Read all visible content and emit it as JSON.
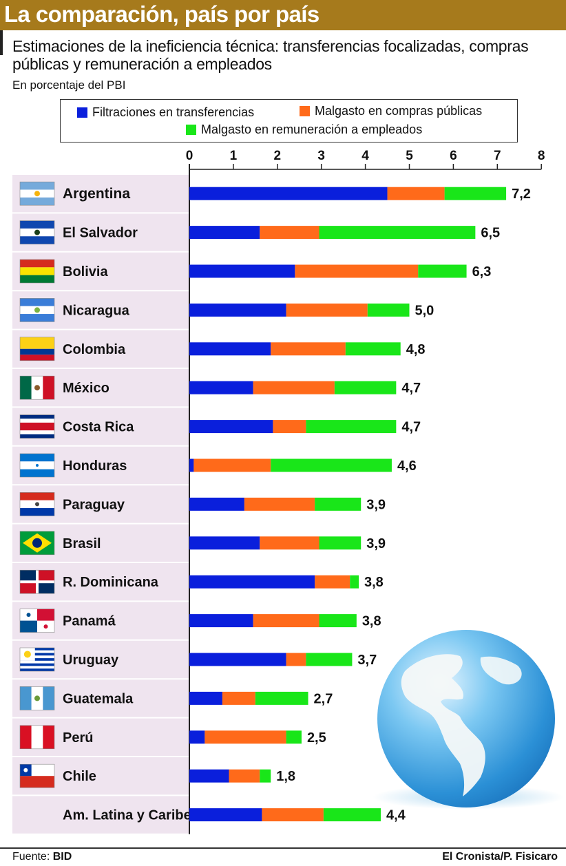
{
  "header": {
    "title": "La comparación, país por país",
    "subtitle": "Estimaciones de la ineficiencia técnica: transferencias focalizadas, compras públicas y remuneración a empleados",
    "unit": "En porcentaje del PBI"
  },
  "footer": {
    "source_label": "Fuente:",
    "source": "BID",
    "credit": "El Cronista/P. Fisicaro"
  },
  "colors": {
    "transferencias": "#0a1fdc",
    "compras": "#ff6a1a",
    "remuneracion": "#19e619",
    "row_band": "#efe4ef",
    "axis": "#222222"
  },
  "chart_data": {
    "type": "bar",
    "orientation": "horizontal",
    "stacked": true,
    "title": "La comparación, país por país",
    "subtitle": "Estimaciones de la ineficiencia técnica: transferencias focalizadas, compras públicas y remuneración a empleados",
    "xlabel": "",
    "ylabel": "",
    "unit": "En porcentaje del PBI",
    "xlim": [
      0,
      8
    ],
    "xticks": [
      "0",
      "1",
      "2",
      "3",
      "4",
      "5",
      "6",
      "7",
      "8"
    ],
    "legend_position": "top",
    "grid": false,
    "categories": [
      "Argentina",
      "El Salvador",
      "Bolivia",
      "Nicaragua",
      "Colombia",
      "México",
      "Costa Rica",
      "Honduras",
      "Paraguay",
      "Brasil",
      "R. Dominicana",
      "Panamá",
      "Uruguay",
      "Guatemala",
      "Perú",
      "Chile",
      "Am. Latina y Caribe"
    ],
    "flags": [
      "argentina",
      "el-salvador",
      "bolivia",
      "nicaragua",
      "colombia",
      "mexico",
      "costa-rica",
      "honduras",
      "paraguay",
      "brasil",
      "r-dominicana",
      "panama",
      "uruguay",
      "guatemala",
      "peru",
      "chile",
      ""
    ],
    "series": [
      {
        "name": "Filtraciones en transferencias",
        "values": [
          4.5,
          1.6,
          2.4,
          2.2,
          1.85,
          1.45,
          1.9,
          0.1,
          1.25,
          1.6,
          2.85,
          1.45,
          2.2,
          0.75,
          0.35,
          0.9,
          1.65
        ]
      },
      {
        "name": "Malgasto en compras públicas",
        "values": [
          1.3,
          1.35,
          2.8,
          1.85,
          1.7,
          1.85,
          0.75,
          1.75,
          1.6,
          1.35,
          0.8,
          1.5,
          0.45,
          0.75,
          1.85,
          0.7,
          1.4
        ]
      },
      {
        "name": "Malgasto en remuneración a empleados",
        "values": [
          1.4,
          3.55,
          1.1,
          0.95,
          1.25,
          1.4,
          2.05,
          2.75,
          1.05,
          0.95,
          0.2,
          0.85,
          1.05,
          1.2,
          0.35,
          0.25,
          1.3
        ]
      }
    ],
    "totals": [
      "7,2",
      "6,5",
      "6,3",
      "5,0",
      "4,8",
      "4,7",
      "4,7",
      "4,6",
      "3,9",
      "3,9",
      "3,8",
      "3,8",
      "3,7",
      "2,7",
      "2,5",
      "1,8",
      "4,4"
    ],
    "highlight": "Argentina"
  }
}
